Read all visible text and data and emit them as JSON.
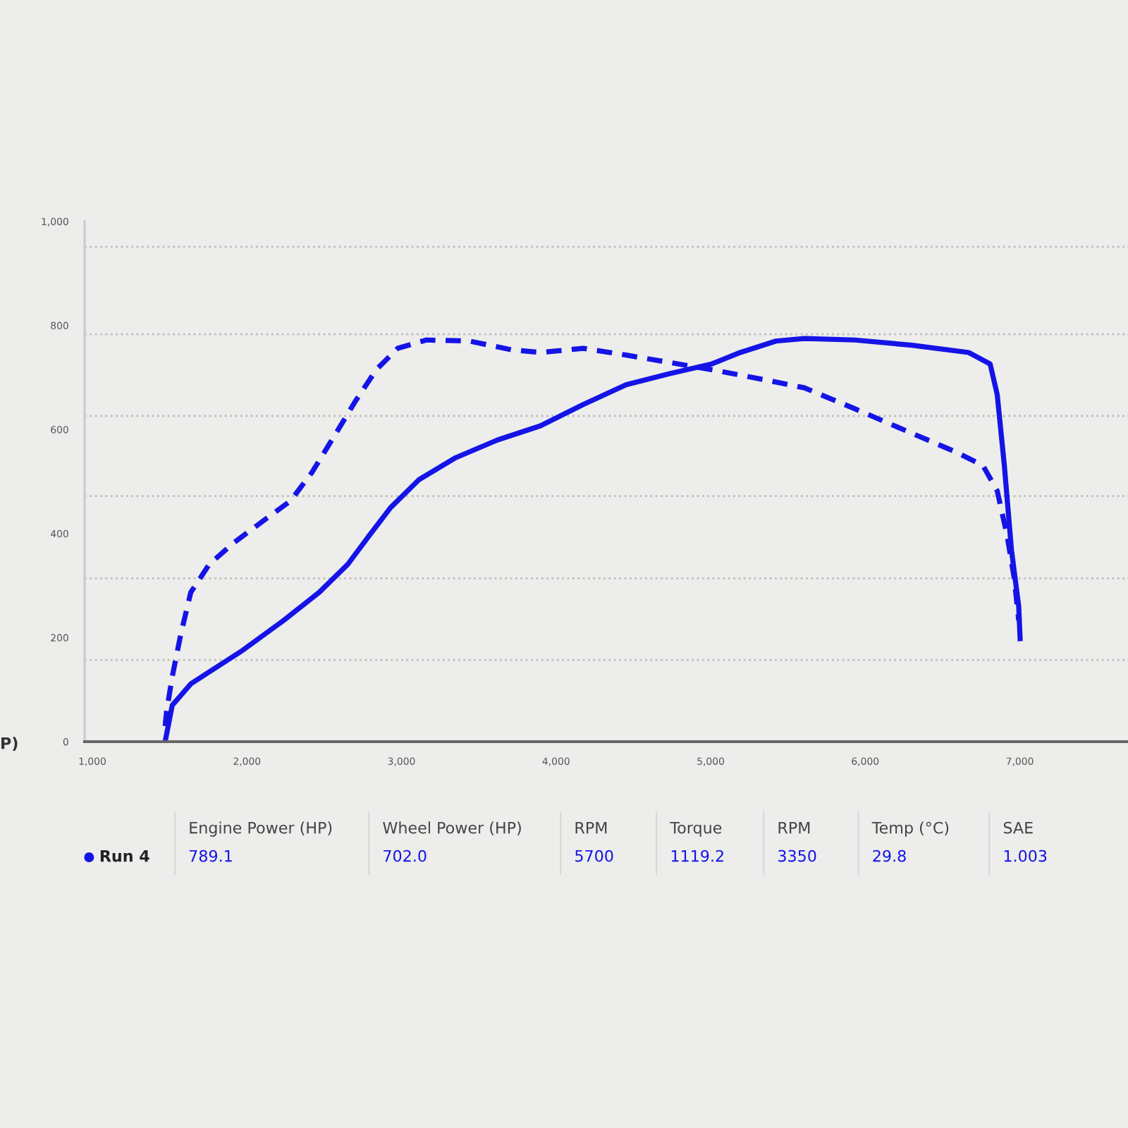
{
  "chart_data": {
    "type": "line",
    "ylabel": "P)",
    "xlim": [
      950,
      7700
    ],
    "ylim": [
      0,
      1000
    ],
    "xticks": [
      {
        "value": 1000,
        "label": "1,000"
      },
      {
        "value": 2000,
        "label": "2,000"
      },
      {
        "value": 3000,
        "label": "3,000"
      },
      {
        "value": 4000,
        "label": "4,000"
      },
      {
        "value": 5000,
        "label": "5,000"
      },
      {
        "value": 6000,
        "label": "6,000"
      },
      {
        "value": 7000,
        "label": "7,000"
      }
    ],
    "yticks": [
      0,
      200,
      400,
      600,
      800,
      {
        "value": 1000,
        "label": "1,000"
      }
    ],
    "grid": false,
    "legend": false,
    "ref_lines": [
      {
        "axis": "y",
        "value": 157,
        "color": "#bdbdbd",
        "line_style": "dotted"
      },
      {
        "axis": "y",
        "value": 314,
        "color": "#bdbdbd",
        "line_style": "dotted"
      },
      {
        "axis": "y",
        "value": 472,
        "color": "#bdbdbd",
        "line_style": "dotted"
      },
      {
        "axis": "y",
        "value": 626,
        "color": "#bdbdbd",
        "line_style": "dotted"
      },
      {
        "axis": "y",
        "value": 783,
        "color": "#bdbdbd",
        "line_style": "dotted"
      },
      {
        "axis": "y",
        "value": 951,
        "color": "#bdbdbd",
        "line_style": "dotted"
      }
    ],
    "series": [
      {
        "color": "#1414e6",
        "line_style": "solid",
        "x": [
          1471,
          1517,
          1637,
          1776,
          1960,
          2237,
          2468,
          2653,
          2791,
          2930,
          3115,
          3345,
          3622,
          3899,
          4176,
          4453,
          4730,
          5007,
          5192,
          5423,
          5607,
          5931,
          6300,
          6669,
          6808,
          6854,
          6900,
          6946,
          6993,
          7002
        ],
        "values": [
          0,
          70,
          111,
          138,
          173,
          233,
          287,
          341,
          396,
          450,
          504,
          545,
          580,
          607,
          648,
          686,
          707,
          726,
          748,
          770,
          775,
          772,
          762,
          748,
          726,
          667,
          531,
          369,
          260,
          198
        ]
      },
      {
        "color": "#1414e6",
        "line_style": "dashed",
        "x": [
          1471,
          1480,
          1517,
          1572,
          1637,
          1757,
          1914,
          2099,
          2283,
          2422,
          2560,
          2699,
          2837,
          2976,
          3161,
          3438,
          3715,
          3899,
          4176,
          4453,
          4730,
          5007,
          5376,
          5607,
          5931,
          6300,
          6577,
          6761,
          6854,
          6918,
          6964,
          6993
        ],
        "values": [
          30,
          57,
          125,
          206,
          287,
          341,
          382,
          423,
          463,
          518,
          585,
          653,
          715,
          756,
          772,
          770,
          753,
          748,
          756,
          743,
          729,
          715,
          694,
          680,
          640,
          593,
          558,
          531,
          482,
          396,
          314,
          233
        ]
      }
    ],
    "annotations": [
      "Run 4",
      "Engine Power (HP)",
      "789.1",
      "Wheel Power (HP)",
      "702.0",
      "RPM",
      "5700",
      "Torque",
      "1119.2",
      "RPM",
      "3350",
      "Temp (°C)",
      "29.8",
      "SAE",
      "1.003"
    ]
  }
}
